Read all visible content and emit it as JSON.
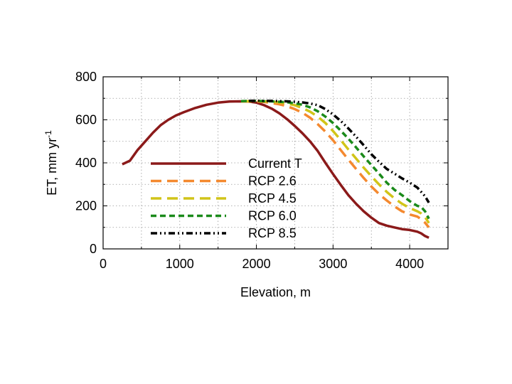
{
  "chart_data": {
    "type": "line",
    "title": "",
    "xlabel": "Elevation, m",
    "ylabel": "ET, mm yr",
    "ylabel_superscript": "-1",
    "xlim": [
      0,
      4500
    ],
    "ylim": [
      0,
      800
    ],
    "xticks": [
      0,
      1000,
      2000,
      3000,
      4000
    ],
    "yticks": [
      0,
      200,
      400,
      600,
      800
    ],
    "minor_xticks": [
      500,
      1500,
      2500,
      3500
    ],
    "minor_yticks": [
      100,
      300,
      500,
      700
    ],
    "grid": true,
    "legend_position": "bottom-left",
    "series": [
      {
        "name": "Current T",
        "color": "#8b1a1a",
        "style": "solid",
        "x": [
          250,
          350,
          450,
          550,
          650,
          750,
          850,
          950,
          1050,
          1200,
          1350,
          1500,
          1650,
          1800,
          1900,
          2000,
          2100,
          2200,
          2300,
          2400,
          2500,
          2600,
          2700,
          2800,
          2900,
          3000,
          3100,
          3200,
          3300,
          3400,
          3500,
          3600,
          3700,
          3800,
          3900,
          4000,
          4100,
          4150,
          4200,
          4250
        ],
        "y": [
          393,
          410,
          460,
          500,
          540,
          575,
          600,
          620,
          635,
          655,
          670,
          680,
          685,
          686,
          685,
          680,
          668,
          652,
          630,
          603,
          572,
          538,
          500,
          455,
          400,
          348,
          298,
          250,
          210,
          175,
          145,
          120,
          108,
          100,
          92,
          88,
          80,
          72,
          60,
          52
        ]
      },
      {
        "name": "RCP 2.6",
        "color": "#f4892f",
        "style": "long-dash",
        "x": [
          1800,
          1900,
          2000,
          2100,
          2200,
          2300,
          2400,
          2500,
          2600,
          2700,
          2800,
          2900,
          3000,
          3100,
          3200,
          3300,
          3400,
          3500,
          3600,
          3700,
          3800,
          3900,
          4000,
          4100,
          4150,
          4200,
          4250
        ],
        "y": [
          685,
          686,
          685,
          683,
          678,
          672,
          663,
          650,
          633,
          610,
          580,
          545,
          505,
          460,
          415,
          372,
          330,
          290,
          255,
          225,
          198,
          175,
          160,
          150,
          138,
          122,
          100
        ]
      },
      {
        "name": "RCP 4.5",
        "color": "#d1c418",
        "style": "long-dash",
        "x": [
          1800,
          1900,
          2000,
          2100,
          2200,
          2300,
          2400,
          2500,
          2600,
          2700,
          2800,
          2900,
          3000,
          3100,
          3200,
          3300,
          3400,
          3500,
          3600,
          3700,
          3800,
          3900,
          4000,
          4100,
          4150,
          4200,
          4250
        ],
        "y": [
          686,
          687,
          687,
          686,
          684,
          681,
          676,
          668,
          655,
          638,
          615,
          585,
          548,
          506,
          462,
          420,
          378,
          338,
          300,
          265,
          235,
          210,
          190,
          175,
          165,
          148,
          120
        ]
      },
      {
        "name": "RCP 6.0",
        "color": "#1a8a1a",
        "style": "dash",
        "x": [
          1800,
          1900,
          2000,
          2100,
          2200,
          2300,
          2400,
          2500,
          2600,
          2700,
          2800,
          2900,
          3000,
          3100,
          3200,
          3300,
          3400,
          3500,
          3600,
          3700,
          3800,
          3900,
          4000,
          4100,
          4150,
          4200,
          4250
        ],
        "y": [
          687,
          688,
          688,
          687,
          686,
          684,
          682,
          677,
          670,
          658,
          640,
          615,
          585,
          550,
          512,
          472,
          430,
          390,
          350,
          308,
          275,
          250,
          222,
          200,
          195,
          175,
          140
        ]
      },
      {
        "name": "RCP 8.5",
        "color": "#000000",
        "style": "dash-dot",
        "x": [
          1900,
          2000,
          2100,
          2200,
          2300,
          2400,
          2500,
          2600,
          2700,
          2800,
          2900,
          3000,
          3100,
          3200,
          3300,
          3400,
          3500,
          3600,
          3700,
          3800,
          3900,
          4000,
          4100,
          4150,
          4200,
          4250
        ],
        "y": [
          688,
          689,
          688,
          688,
          687,
          686,
          684,
          681,
          676,
          668,
          650,
          625,
          595,
          560,
          522,
          482,
          440,
          405,
          372,
          350,
          328,
          308,
          285,
          265,
          245,
          215
        ]
      }
    ]
  }
}
